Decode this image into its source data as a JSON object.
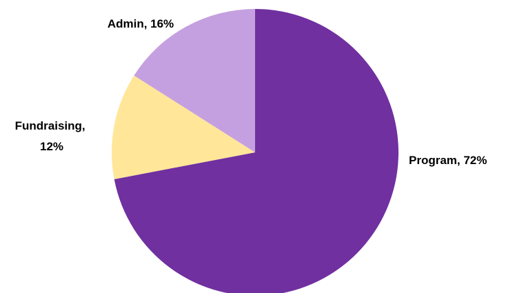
{
  "chart_data": {
    "type": "pie",
    "title": "",
    "start_angle_deg": 0,
    "direction": "clockwise",
    "slices": [
      {
        "label": "Program",
        "value": 72,
        "display": "Program, 72%",
        "color": "#7030A0"
      },
      {
        "label": "Fundraising",
        "value": 12,
        "display_lines": [
          "Fundraising,",
          "12%"
        ],
        "color": "#FFE699"
      },
      {
        "label": "Admin",
        "value": 16,
        "display": "Admin, 16%",
        "color": "#C5A0E0"
      }
    ],
    "legend": "none",
    "data_labels": "outside, category and percent"
  }
}
